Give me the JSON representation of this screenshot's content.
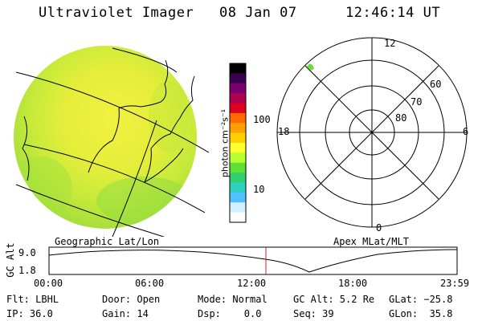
{
  "header": {
    "instrument": "Ultraviolet Imager",
    "date": "08 Jan 07",
    "time": "12:46:14 UT"
  },
  "colorbar": {
    "label": "photon cm⁻²s⁻¹",
    "ticks": [
      "100",
      "10"
    ],
    "colors": [
      "#000000",
      "#3a0050",
      "#7a0070",
      "#b00050",
      "#e00020",
      "#ff6a00",
      "#ffa000",
      "#ffd000",
      "#ffff30",
      "#b8ff30",
      "#60e030",
      "#30d070",
      "#30d0c0",
      "#50c0ff",
      "#d0f0ff",
      "#ffffff"
    ]
  },
  "geo_panel": {
    "caption": "Geographic Lat/Lon"
  },
  "apex_panel": {
    "caption": "Apex MLat/MLT",
    "mlt_labels": {
      "top": "12",
      "bottom": "0",
      "left": "18",
      "right": "6"
    },
    "lat_labels": [
      "60",
      "70",
      "80"
    ]
  },
  "altitude_plot": {
    "ylabel": "GC Alt",
    "yticks": [
      "9.0",
      "1.8"
    ],
    "xticks": [
      "00:00",
      "06:00",
      "12:00",
      "18:00",
      "23:59"
    ],
    "marker_color": "#c02030"
  },
  "status": {
    "flt": "Flt: LBHL",
    "ip": "IP: 36.0",
    "door": "Door: Open",
    "gain": "Gain: 14",
    "mode": "Mode: Normal",
    "dsp": "Dsp:    0.0",
    "gc_alt": "GC Alt: 5.2 Re",
    "seq": "Seq: 39",
    "glat": "GLat: −25.8",
    "glon": "GLon:  35.8"
  }
}
